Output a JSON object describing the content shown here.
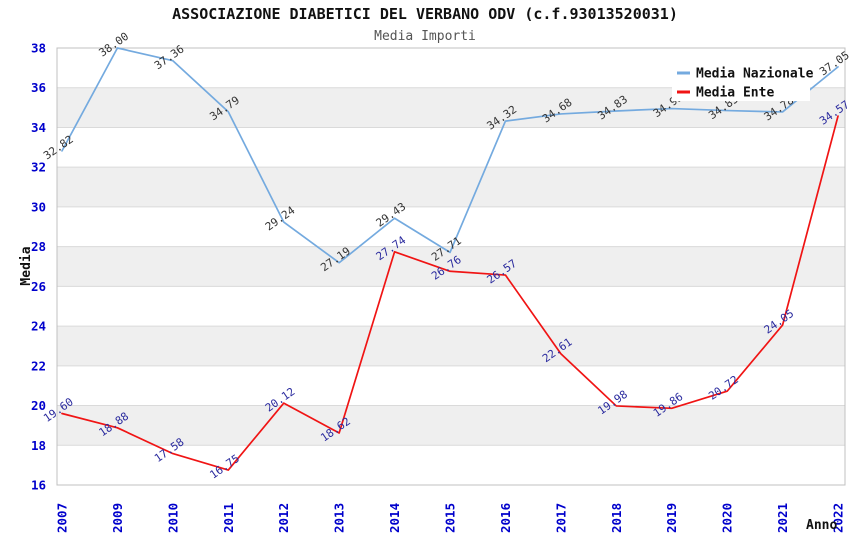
{
  "chart_data": {
    "type": "line",
    "title": "ASSOCIAZIONE DIABETICI DEL VERBANO ODV (c.f.93013520031)",
    "subtitle": "Media Importi",
    "xlabel": "Anno",
    "ylabel": "Media",
    "ylim": [
      16,
      38
    ],
    "ytick_step": 2,
    "grid": "horizontal-bands",
    "band_colors": [
      "#FFFFFF",
      "#EFEFEF"
    ],
    "tick_color": "#0000CC",
    "legend_position": "top-right",
    "categories": [
      "2007",
      "2009",
      "2010",
      "2011",
      "2012",
      "2013",
      "2014",
      "2015",
      "2016",
      "2017",
      "2018",
      "2019",
      "2020",
      "2021",
      "2022"
    ],
    "series": [
      {
        "name": "Media Nazionale",
        "color": "#74AADF",
        "label_color": "#333333",
        "values": [
          32.82,
          38.0,
          37.36,
          34.79,
          29.24,
          27.19,
          29.43,
          27.71,
          34.32,
          34.68,
          34.83,
          34.95,
          34.85,
          34.78,
          37.05
        ]
      },
      {
        "name": "Media Ente",
        "color": "#F01414",
        "label_color": "#2A2A9E",
        "values": [
          19.6,
          18.88,
          17.58,
          16.75,
          20.12,
          18.62,
          27.74,
          26.76,
          26.57,
          22.61,
          19.98,
          19.86,
          20.72,
          24.05,
          34.57
        ]
      }
    ]
  }
}
